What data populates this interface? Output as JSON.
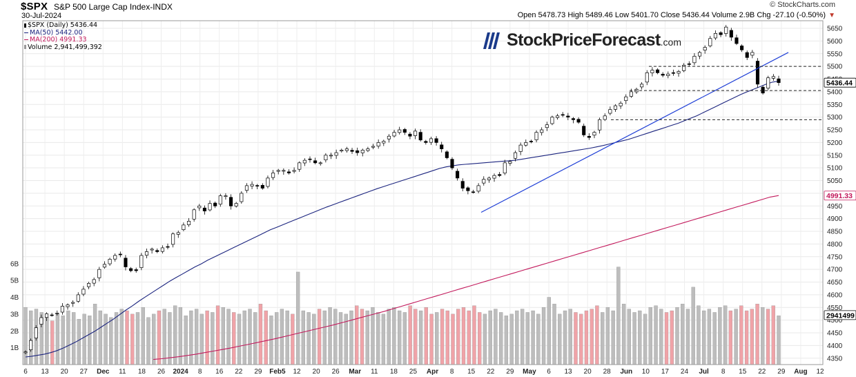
{
  "header": {
    "symbol": "$SPX",
    "name": "S&P 500 Large Cap Index-INDX",
    "date": "30-Jul-2024",
    "brand": "© StockCharts.com",
    "ohlc_line": "Open 5478.73 High 5489.46 Low 5401.70 Close 5436.44 Volume 2.9B Chg -27.10 (-0.50%)",
    "chg_arrow": "▼"
  },
  "legend": {
    "price": "$SPX (Daily) 5436.44",
    "ma50": "MA(50) 5442.00",
    "ma200": "MA(200) 4991.33",
    "volume": "Volume 2,941,499,392"
  },
  "watermark": {
    "text": "StockPriceForecast",
    "suffix": ".com"
  },
  "colors": {
    "ma50": "#1a237e",
    "ma200": "#c2185b",
    "trend": "#1f3fd6",
    "vol_up": "#bdbdbd",
    "vol_down": "#f0a3a8",
    "up_candle": "#ffffff",
    "down_candle": "#000000"
  },
  "chart_data": {
    "type": "candlestick",
    "title": "$SPX S&P 500 Large Cap Index-INDX",
    "price_axis": {
      "ticks": [
        4350,
        4400,
        4450,
        4500,
        4550,
        4600,
        4650,
        4700,
        4750,
        4800,
        4850,
        4900,
        4950,
        5000,
        5050,
        5100,
        5150,
        5200,
        5250,
        5300,
        5350,
        5400,
        5450,
        5500,
        5550,
        5600,
        5650
      ],
      "range": [
        4325,
        5680
      ]
    },
    "volume_axis": {
      "ticks": [
        "1B",
        "2B",
        "3B",
        "4B",
        "5B",
        "6B"
      ],
      "range_billions": [
        0,
        6.4
      ]
    },
    "x_labels": [
      "6",
      "13",
      "20",
      "27",
      "Dec",
      "11",
      "18",
      "26",
      "2024",
      "8",
      "16",
      "22",
      "29",
      "Feb5",
      "12",
      "20",
      "26",
      "Mar",
      "11",
      "18",
      "25",
      "Apr",
      "8",
      "15",
      "22",
      "29",
      "May",
      "6",
      "13",
      "20",
      "28",
      "Jun",
      "10",
      "17",
      "24",
      "Jul",
      "8",
      "15",
      "22",
      "29",
      "Aug",
      "12"
    ],
    "closes": [
      4375,
      4420,
      4470,
      4510,
      4525,
      4520,
      4528,
      4555,
      4560,
      4570,
      4600,
      4622,
      4645,
      4660,
      4700,
      4720,
      4740,
      4755,
      4760,
      4710,
      4695,
      4695,
      4755,
      4770,
      4780,
      4770,
      4785,
      4789,
      4840,
      4845,
      4875,
      4890,
      4935,
      4950,
      4930,
      4960,
      4950,
      4990,
      4990,
      4950,
      4960,
      5000,
      5030,
      5035,
      5030,
      5020,
      5060,
      5080,
      5090,
      5090,
      5080,
      5090,
      5120,
      5130,
      5135,
      5120,
      5120,
      5150,
      5150,
      5160,
      5170,
      5175,
      5165,
      5160,
      5170,
      5175,
      5185,
      5200,
      5205,
      5225,
      5240,
      5250,
      5240,
      5225,
      5245,
      5210,
      5200,
      5215,
      5200,
      5175,
      5140,
      5100,
      5060,
      5020,
      5010,
      5005,
      5030,
      5055,
      5060,
      5070,
      5070,
      5120,
      5125,
      5160,
      5190,
      5200,
      5205,
      5240,
      5250,
      5270,
      5300,
      5305,
      5310,
      5300,
      5290,
      5280,
      5230,
      5220,
      5240,
      5290,
      5305,
      5330,
      5345,
      5355,
      5380,
      5400,
      5410,
      5430,
      5475,
      5485,
      5475,
      5465,
      5470,
      5475,
      5480,
      5505,
      5510,
      5540,
      5555,
      5575,
      5610,
      5630,
      5625,
      5655,
      5615,
      5590,
      5565,
      5535,
      5555,
      5430,
      5395,
      5455,
      5460,
      5436
    ],
    "ma50": [
      4355,
      4358,
      4362,
      4366,
      4372,
      4380,
      4390,
      4402,
      4414,
      4428,
      4442,
      4456,
      4472,
      4488,
      4504,
      4522,
      4540,
      4556,
      4574,
      4590,
      4606,
      4622,
      4638,
      4654,
      4668,
      4682,
      4696,
      4710,
      4722,
      4736,
      4748,
      4760,
      4772,
      4784,
      4796,
      4808,
      4820,
      4832,
      4844,
      4856,
      4866,
      4876,
      4886,
      4896,
      4906,
      4916,
      4926,
      4936,
      4946,
      4955,
      4964,
      4973,
      4982,
      4991,
      5000,
      5009,
      5018,
      5026,
      5034,
      5042,
      5050,
      5058,
      5066,
      5074,
      5082,
      5090,
      5098,
      5104,
      5108,
      5112,
      5114,
      5116,
      5118,
      5120,
      5122,
      5124,
      5126,
      5128,
      5130,
      5134,
      5138,
      5142,
      5146,
      5150,
      5154,
      5158,
      5162,
      5166,
      5170,
      5174,
      5178,
      5183,
      5188,
      5194,
      5200,
      5206,
      5212,
      5220,
      5228,
      5236,
      5244,
      5252,
      5260,
      5268,
      5276,
      5286,
      5296,
      5306,
      5318,
      5330,
      5342,
      5354,
      5366,
      5378,
      5390,
      5400,
      5410,
      5420,
      5430,
      5438,
      5442
    ],
    "ma200": [
      4345,
      4348,
      4352,
      4356,
      4361,
      4366,
      4372,
      4378,
      4384,
      4390,
      4397,
      4404,
      4411,
      4418,
      4425,
      4433,
      4441,
      4449,
      4457,
      4465,
      4473,
      4481,
      4490,
      4499,
      4508,
      4517,
      4526,
      4535,
      4545,
      4555,
      4565,
      4575,
      4585,
      4595,
      4605,
      4615,
      4625,
      4635,
      4645,
      4655,
      4665,
      4675,
      4685,
      4695,
      4705,
      4715,
      4725,
      4735,
      4745,
      4755,
      4765,
      4775,
      4785,
      4795,
      4805,
      4815,
      4825,
      4835,
      4845,
      4855,
      4865,
      4875,
      4885,
      4895,
      4905,
      4915,
      4925,
      4935,
      4945,
      4955,
      4965,
      4975,
      4985,
      4991
    ],
    "volume_billions": [
      3.4,
      3.2,
      3.3,
      3.1,
      2.8,
      2.6,
      3.0,
      2.9,
      3.2,
      3.1,
      2.7,
      3.0,
      2.9,
      3.6,
      3.2,
      3.0,
      2.8,
      3.1,
      3.3,
      3.2,
      3.0,
      3.1,
      3.4,
      2.8,
      3.0,
      3.2,
      3.3,
      3.1,
      3.5,
      3.4,
      2.9,
      3.2,
      3.3,
      3.0,
      3.2,
      3.1,
      3.5,
      3.4,
      3.3,
      3.1,
      3.0,
      3.2,
      3.3,
      3.1,
      3.6,
      3.2,
      2.9,
      3.1,
      3.3,
      3.2,
      3.0,
      5.5,
      3.2,
      3.1,
      3.0,
      3.3,
      3.2,
      3.4,
      3.3,
      3.1,
      3.0,
      3.2,
      3.5,
      3.3,
      3.2,
      3.4,
      3.1,
      3.0,
      3.3,
      3.4,
      3.2,
      3.1,
      3.5,
      3.3,
      3.2,
      3.4,
      3.0,
      3.1,
      3.3,
      3.2,
      3.0,
      3.3,
      3.4,
      3.2,
      3.5,
      3.1,
      3.0,
      3.2,
      3.3,
      3.1,
      2.9,
      3.0,
      3.2,
      3.3,
      3.1,
      3.2,
      3.0,
      3.4,
      4.0,
      3.6,
      3.0,
      3.2,
      3.3,
      3.1,
      3.0,
      3.2,
      3.3,
      3.5,
      3.1,
      3.4,
      3.2,
      5.8,
      3.6,
      3.3,
      3.1,
      3.2,
      3.0,
      3.4,
      3.5,
      3.3,
      3.1,
      3.2,
      3.4,
      3.6,
      3.3,
      4.6,
      3.5,
      3.2,
      3.3,
      3.1,
      3.4,
      3.5,
      3.2,
      3.3,
      3.5,
      3.2,
      3.3,
      3.6,
      3.4,
      3.3,
      3.5,
      2.9
    ]
  },
  "price_label": "5436.44",
  "ma200_label": "4991.33",
  "volume_label": "2941499"
}
